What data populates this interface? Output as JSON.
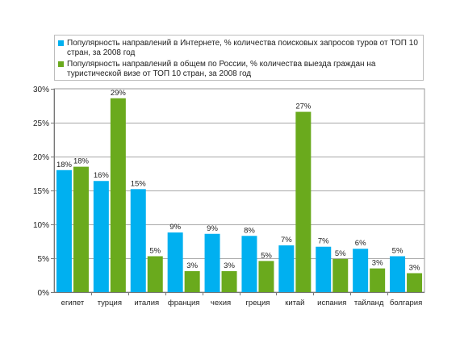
{
  "legend": {
    "items": [
      {
        "label": "Популярность направлений в Интернете, % количества поисковых запросов туров от ТОП 10 стран, за 2008 год",
        "color": "#00b0f0"
      },
      {
        "label": "Популярность направлений в общем по России, % количества выезда граждан на туристической визе от ТОП 10 стран, за 2008 год",
        "color": "#6aaa1d"
      }
    ]
  },
  "chart_data": {
    "type": "bar",
    "categories": [
      "египет",
      "турция",
      "италия",
      "франция",
      "чехия",
      "греция",
      "китай",
      "испания",
      "тайланд",
      "болгария"
    ],
    "series": [
      {
        "name": "Популярность направлений в Интернете, % количества поисковых запросов туров от ТОП 10 стран, за 2008 год",
        "color": "#00b0f0",
        "values": [
          18,
          16.4,
          15.2,
          8.8,
          8.6,
          8.3,
          6.9,
          6.7,
          6.4,
          5.3
        ],
        "labels": [
          "18%",
          "16%",
          "15%",
          "9%",
          "9%",
          "8%",
          "7%",
          "7%",
          "6%",
          "5%"
        ]
      },
      {
        "name": "Популярность направлений в общем по России, % количества выезда граждан на туристической визе от ТОП 10 стран, за 2008 год",
        "color": "#6aaa1d",
        "values": [
          18.5,
          28.6,
          5.3,
          3.1,
          3.1,
          4.6,
          26.6,
          4.9,
          3.5,
          2.8
        ],
        "labels": [
          "18%",
          "29%",
          "5%",
          "3%",
          "3%",
          "5%",
          "27%",
          "5%",
          "3%",
          "3%"
        ]
      }
    ],
    "yticks": [
      "0%",
      "5%",
      "10%",
      "15%",
      "20%",
      "25%",
      "30%"
    ],
    "ylim": [
      0,
      30
    ],
    "grid": true,
    "legend_position": "top"
  }
}
